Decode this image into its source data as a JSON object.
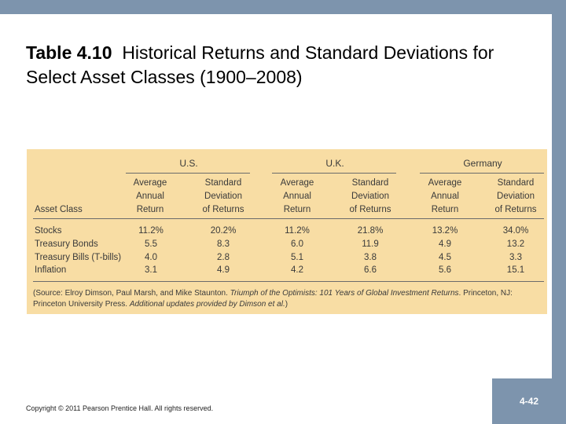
{
  "slide": {
    "title_bold": "Table 4.10",
    "title_text": "Historical Returns and Standard Deviations for Select Asset Classes (1900–2008)",
    "page_number": "4-42",
    "copyright": "Copyright © 2011 Pearson Prentice Hall. All rights reserved."
  },
  "table": {
    "stub_header": "Asset Class",
    "groups": [
      "U.S.",
      "U.K.",
      "Germany"
    ],
    "column_headers": {
      "average": [
        "Average",
        "Annual",
        "Return"
      ],
      "stdev": [
        "Standard",
        "Deviation",
        "of Returns"
      ]
    },
    "rows": [
      {
        "label": "Stocks",
        "values": [
          "11.2%",
          "20.2%",
          "11.2%",
          "21.8%",
          "13.2%",
          "34.0%"
        ]
      },
      {
        "label": "Treasury Bonds",
        "values": [
          "5.5",
          "8.3",
          "6.0",
          "11.9",
          "4.9",
          "13.2"
        ]
      },
      {
        "label": "Treasury Bills (T-bills)",
        "values": [
          "4.0",
          "2.8",
          "5.1",
          "3.8",
          "4.5",
          "3.3"
        ]
      },
      {
        "label": "Inflation",
        "values": [
          "3.1",
          "4.9",
          "4.2",
          "6.6",
          "5.6",
          "15.1"
        ]
      }
    ],
    "source_prefix": "(Source: Elroy Dimson, Paul Marsh, and Mike Staunton. ",
    "source_italic_1": "Triumph of the Optimists: 101 Years of Global Investment Returns",
    "source_middle": ". Princeton, NJ: Princeton University Press. ",
    "source_italic_2": "Additional updates provided by Dimson et al.",
    "source_suffix": ")"
  }
}
